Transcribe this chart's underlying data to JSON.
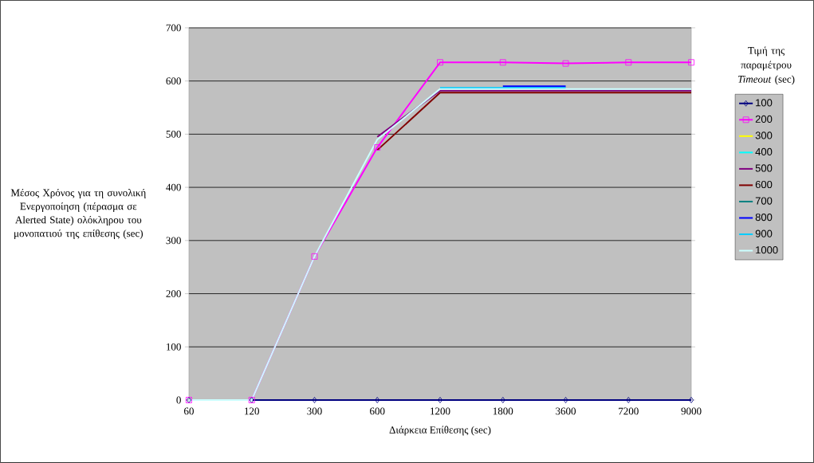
{
  "chart_data": {
    "type": "line",
    "xlabel": "Διάρκεια Επίθεσης (sec)",
    "ylabel": "Μέσος Χρόνος για τη συνολική Ενεργοποίηση (πέρασμα σε Alerted State) ολόκληρου του μονοπατιού της επίθεσης (sec)",
    "legend_title": "Τιμή της παραμέτρου *Timeout* (sec)",
    "categories": [
      "60",
      "120",
      "300",
      "600",
      "1200",
      "1800",
      "3600",
      "7200",
      "9000"
    ],
    "ylim": [
      0,
      700
    ],
    "yticks": [
      0,
      100,
      200,
      300,
      400,
      500,
      600,
      700
    ],
    "grid": "y",
    "legend": "right",
    "line_style": "solid",
    "marker": "none",
    "series": [
      {
        "name": "100",
        "color": "#000080",
        "marker": "diamond",
        "values": [
          0,
          0,
          0,
          0,
          0,
          0,
          0,
          0,
          0
        ]
      },
      {
        "name": "200",
        "color": "#ff00ff",
        "marker": "square",
        "values": [
          0,
          0,
          270,
          475,
          635,
          635,
          633,
          635,
          635
        ]
      },
      {
        "name": "300",
        "color": "#ffff00",
        "values": [
          null,
          null,
          null,
          null,
          null,
          null,
          null,
          null,
          null
        ]
      },
      {
        "name": "400",
        "color": "#00ffff",
        "values": [
          null,
          null,
          null,
          null,
          null,
          null,
          null,
          null,
          null
        ]
      },
      {
        "name": "500",
        "color": "#800080",
        "values": [
          null,
          null,
          null,
          495,
          582,
          582,
          582,
          582,
          582
        ]
      },
      {
        "name": "600",
        "color": "#800000",
        "values": [
          null,
          null,
          null,
          470,
          578,
          578,
          578,
          578,
          578
        ]
      },
      {
        "name": "700",
        "color": "#008080",
        "values": [
          null,
          null,
          null,
          null,
          null,
          null,
          null,
          null,
          null
        ]
      },
      {
        "name": "800",
        "color": "#0000ff",
        "values": [
          null,
          null,
          null,
          null,
          null,
          590,
          590,
          null,
          null
        ]
      },
      {
        "name": "900",
        "color": "#00ccff",
        "values": [
          null,
          null,
          null,
          null,
          587,
          587,
          587,
          null,
          null
        ]
      },
      {
        "name": "1000",
        "color": "#ccffff",
        "values": [
          0,
          0,
          270,
          490,
          585,
          585,
          585,
          585,
          585
        ]
      }
    ]
  }
}
